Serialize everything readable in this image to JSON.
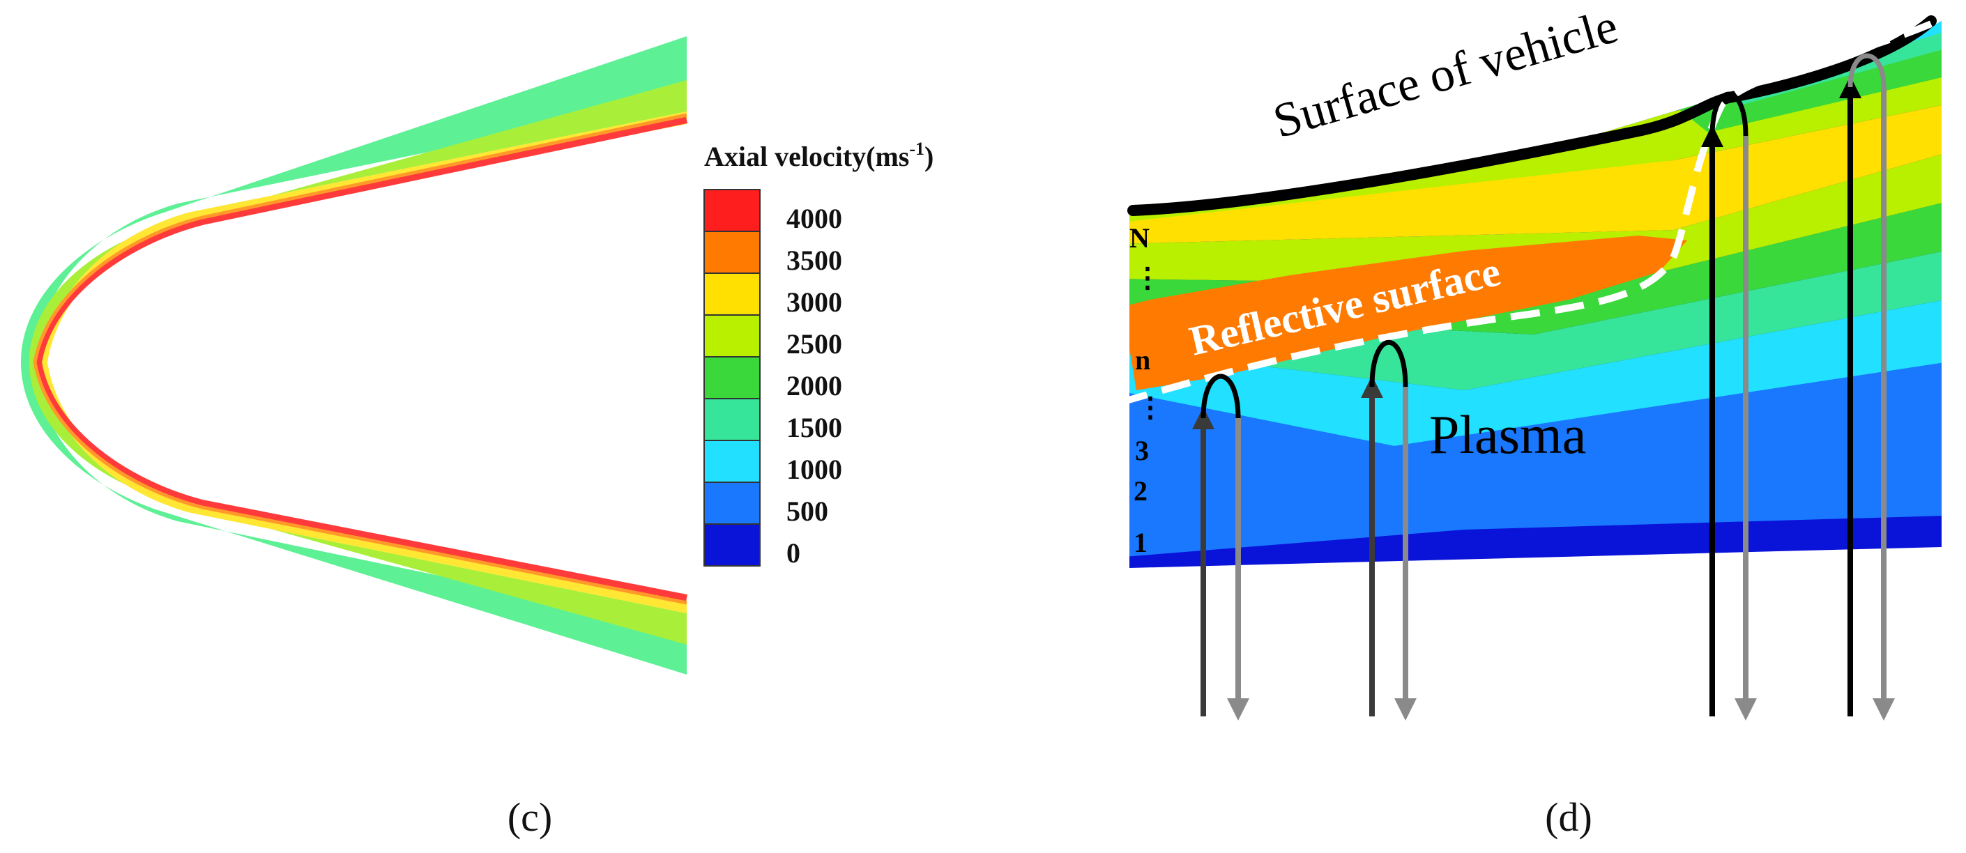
{
  "panel_c": {
    "label": "(c)",
    "legend": {
      "title_main": "Axial velocity(ms",
      "title_sup": "-1",
      "title_close": ")",
      "levels": [
        {
          "value": "4000",
          "color": "#ff1e1e"
        },
        {
          "value": "3500",
          "color": "#ff7a00"
        },
        {
          "value": "3000",
          "color": "#ffe000"
        },
        {
          "value": "2500",
          "color": "#b8f000"
        },
        {
          "value": "2000",
          "color": "#3ad83a"
        },
        {
          "value": "1500",
          "color": "#36e59a"
        },
        {
          "value": "1000",
          "color": "#22e0ff"
        },
        {
          "value": "500",
          "color": "#1a78ff"
        },
        {
          "value": "0",
          "color": "#0a14d8"
        }
      ]
    }
  },
  "panel_d": {
    "label": "(d)",
    "surface_label": "Surface of vehicle",
    "reflective_label": "Reflective surface",
    "plasma_label": "Plasma",
    "layer_labels": {
      "top": "N",
      "dots1": "⋮",
      "mid": "n",
      "dots2": "⋮",
      "l3": "3",
      "l2": "2",
      "l1": "1"
    }
  }
}
